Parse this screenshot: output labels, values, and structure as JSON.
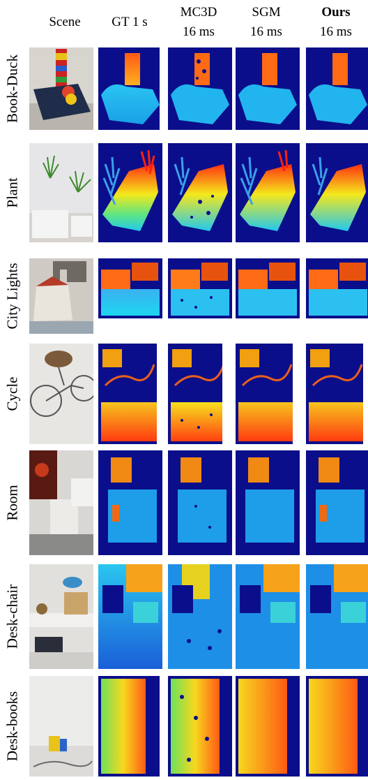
{
  "columns": [
    {
      "line1": "Scene",
      "line2": ""
    },
    {
      "line1": "GT 1 s",
      "line2": ""
    },
    {
      "line1": "MC3D",
      "line2": "16 ms"
    },
    {
      "line1": "SGM",
      "line2": "16 ms"
    },
    {
      "line1": "Ours",
      "line2": "16 ms"
    }
  ],
  "rows": [
    {
      "label": "Book-Duck"
    },
    {
      "label": "Plant"
    },
    {
      "label": "City Lights"
    },
    {
      "label": "Cycle"
    },
    {
      "label": "Room"
    },
    {
      "label": "Desk-chair"
    },
    {
      "label": "Desk-books"
    }
  ],
  "colors": {
    "depth_background": "#0b0e8a",
    "near": "#1fd3f0",
    "mid": "#f7e81e",
    "far": "#d4380d"
  }
}
